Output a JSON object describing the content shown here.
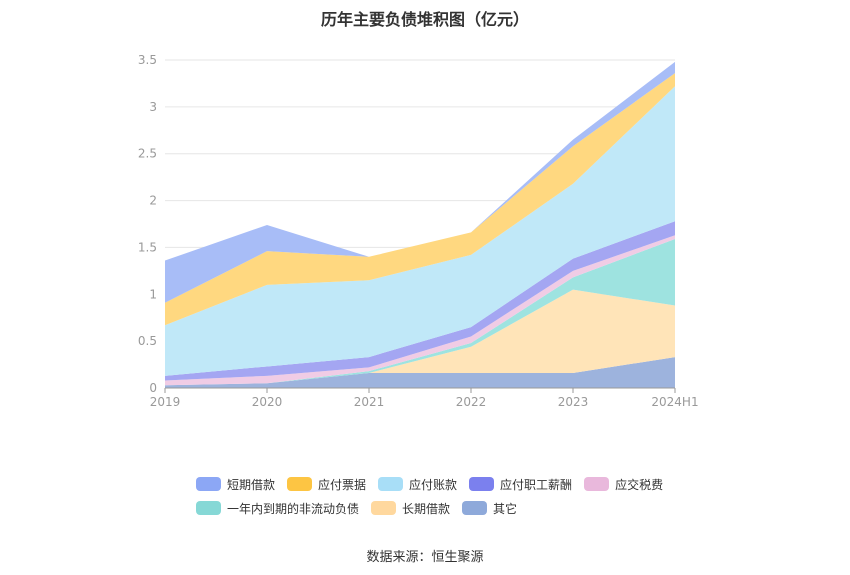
{
  "chart_data": {
    "type": "area",
    "stacked": true,
    "title": "历年主要负债堆积图（亿元）",
    "categories": [
      "2019",
      "2020",
      "2021",
      "2022",
      "2023",
      "2024H1"
    ],
    "ylim": [
      0,
      3.5
    ],
    "yticks": [
      "0",
      "0.5",
      "1",
      "1.5",
      "2",
      "2.5",
      "3",
      "3.5"
    ],
    "grid": true,
    "legend_position": "bottom",
    "series": [
      {
        "name": "其它",
        "color": "#9db3dd",
        "values": [
          0.03,
          0.05,
          0.16,
          0.16,
          0.16,
          0.33
        ]
      },
      {
        "name": "长期借款",
        "color": "#ffe4b8",
        "values": [
          0.0,
          0.0,
          0.0,
          0.28,
          0.89,
          0.55
        ]
      },
      {
        "name": "一年内到期的非流动负债",
        "color": "#9ee3e0",
        "values": [
          0.0,
          0.0,
          0.02,
          0.04,
          0.13,
          0.71
        ]
      },
      {
        "name": "应交税费",
        "color": "#f0cce5",
        "values": [
          0.05,
          0.08,
          0.04,
          0.07,
          0.07,
          0.04
        ]
      },
      {
        "name": "应付职工薪酬",
        "color": "#a4a6f2",
        "values": [
          0.05,
          0.1,
          0.11,
          0.1,
          0.13,
          0.15
        ]
      },
      {
        "name": "应付账款",
        "color": "#c0e8f8",
        "values": [
          0.54,
          0.87,
          0.82,
          0.77,
          0.8,
          1.44
        ]
      },
      {
        "name": "应付票据",
        "color": "#ffd880",
        "values": [
          0.24,
          0.36,
          0.25,
          0.24,
          0.4,
          0.14
        ]
      },
      {
        "name": "短期借款",
        "color": "#a8bdf7",
        "values": [
          0.45,
          0.28,
          0.0,
          0.0,
          0.07,
          0.12
        ]
      }
    ]
  },
  "legend": {
    "rows": [
      [
        {
          "name": "短期借款",
          "color": "#8ca7f5"
        },
        {
          "name": "应付票据",
          "color": "#fdc543"
        },
        {
          "name": "应付账款",
          "color": "#a8def7"
        },
        {
          "name": "应付职工薪酬",
          "color": "#7b80ee"
        },
        {
          "name": "应交税费",
          "color": "#e9b8dc"
        }
      ],
      [
        {
          "name": "一年内到期的非流动负债",
          "color": "#86d8d6"
        },
        {
          "name": "长期借款",
          "color": "#ffd89e"
        },
        {
          "name": "其它",
          "color": "#8ea9da"
        }
      ]
    ]
  },
  "source": "数据来源：恒生聚源"
}
